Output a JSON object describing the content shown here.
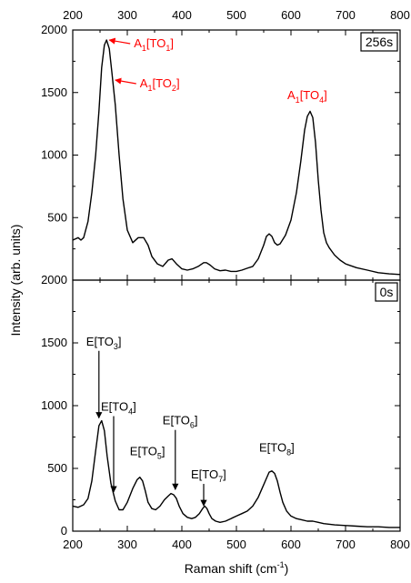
{
  "chart_data": {
    "type": "line",
    "xlabel": "Raman shift (cm",
    "xlabel_sup": "-1",
    "xlabel_end": ")",
    "ylabel": "Intensity (arb. units)",
    "xlim": [
      200,
      800
    ],
    "x_ticks": [
      "200",
      "300",
      "400",
      "500",
      "600",
      "700",
      "800"
    ],
    "colors": {
      "line": "#000000",
      "annotation_top": "#ff0000",
      "annotation_bottom": "#000000"
    },
    "panels": [
      {
        "tag": "256s",
        "ylim": [
          0,
          2000
        ],
        "y_ticks": [
          "500",
          "1000",
          "1500",
          "2000"
        ],
        "series": [
          {
            "x": [
              200,
              210,
              215,
              220,
              228,
              235,
              242,
              248,
              253,
              258,
              262,
              267,
              272,
              278,
              285,
              292,
              300,
              310,
              320,
              330,
              338,
              345,
              355,
              365,
              375,
              382,
              390,
              400,
              410,
              420,
              430,
              440,
              445,
              452,
              460,
              470,
              480,
              490,
              500,
              510,
              520,
              530,
              540,
              550,
              555,
              560,
              565,
              570,
              575,
              580,
              590,
              600,
              610,
              618,
              625,
              630,
              635,
              640,
              645,
              650,
              655,
              660,
              665,
              670,
              680,
              690,
              700,
              720,
              740,
              760,
              780,
              800
            ],
            "y": [
              320,
              340,
              320,
              340,
              470,
              700,
              1000,
              1350,
              1700,
              1880,
              1920,
              1850,
              1650,
              1400,
              1000,
              650,
              400,
              300,
              340,
              340,
              280,
              190,
              130,
              110,
              160,
              170,
              130,
              90,
              80,
              90,
              110,
              140,
              140,
              120,
              90,
              75,
              80,
              70,
              70,
              80,
              95,
              110,
              170,
              280,
              350,
              370,
              350,
              300,
              280,
              290,
              360,
              480,
              700,
              950,
              1200,
              1310,
              1350,
              1300,
              1100,
              800,
              560,
              380,
              300,
              260,
              200,
              160,
              130,
              100,
              80,
              60,
              50,
              45
            ]
          }
        ],
        "annotations": [
          {
            "text": "A",
            "sub": "1",
            "mid": "[TO",
            "sub2": "1",
            "end": "]",
            "x": 262,
            "y": 1920,
            "dir": "left"
          },
          {
            "text": "A",
            "sub": "1",
            "mid": "[TO",
            "sub2": "2",
            "end": "]",
            "x": 273,
            "y": 1600,
            "dir": "left"
          },
          {
            "text": "A",
            "sub": "1",
            "mid": "[TO",
            "sub2": "4",
            "end": "]",
            "x": 635,
            "y": 1420,
            "dir": "none"
          }
        ]
      },
      {
        "tag": "0s",
        "ylim": [
          0,
          2000
        ],
        "y_ticks": [
          "0",
          "500",
          "1000",
          "1500",
          "2000"
        ],
        "series": [
          {
            "x": [
              200,
              210,
              220,
              228,
              235,
              242,
              248,
              253,
              258,
              263,
              270,
              278,
              285,
              292,
              300,
              310,
              318,
              323,
              328,
              333,
              338,
              345,
              352,
              360,
              368,
              375,
              380,
              385,
              390,
              395,
              402,
              410,
              418,
              425,
              432,
              438,
              442,
              446,
              450,
              455,
              462,
              470,
              480,
              490,
              500,
              510,
              520,
              530,
              540,
              548,
              555,
              560,
              565,
              570,
              575,
              580,
              585,
              592,
              600,
              610,
              620,
              630,
              640,
              650,
              660,
              680,
              700,
              720,
              740,
              760,
              780,
              800
            ],
            "y": [
              200,
              190,
              210,
              260,
              400,
              640,
              840,
              880,
              800,
              600,
              380,
              240,
              170,
              170,
              230,
              340,
              410,
              430,
              400,
              320,
              230,
              180,
              170,
              200,
              250,
              280,
              300,
              290,
              260,
              200,
              140,
              110,
              100,
              110,
              140,
              180,
              200,
              180,
              140,
              100,
              80,
              70,
              80,
              100,
              120,
              140,
              160,
              200,
              270,
              350,
              420,
              470,
              480,
              460,
              400,
              310,
              230,
              160,
              120,
              100,
              90,
              80,
              80,
              70,
              60,
              50,
              45,
              40,
              35,
              35,
              30,
              30
            ]
          }
        ],
        "annotations": [
          {
            "text": "E[TO",
            "sub2": "3",
            "end": "]",
            "x": 248,
            "y": 880,
            "label_y": 1480,
            "dir": "down"
          },
          {
            "text": "E[TO",
            "sub2": "4",
            "end": "]",
            "x": 275,
            "y": 290,
            "label_y": 960,
            "dir": "down"
          },
          {
            "text": "E[TO",
            "sub2": "5",
            "end": "]",
            "x": 328,
            "y": 560,
            "label_y": 0,
            "dir": "none"
          },
          {
            "text": "E[TO",
            "sub2": "6",
            "end": "]",
            "x": 388,
            "y": 310,
            "label_y": 850,
            "dir": "down"
          },
          {
            "text": "E[TO",
            "sub2": "7",
            "end": "]",
            "x": 440,
            "y": 180,
            "label_y": 420,
            "dir": "down"
          },
          {
            "text": "E[TO",
            "sub2": "8",
            "end": "]",
            "x": 565,
            "y": 590,
            "label_y": 0,
            "dir": "none"
          }
        ]
      }
    ]
  }
}
